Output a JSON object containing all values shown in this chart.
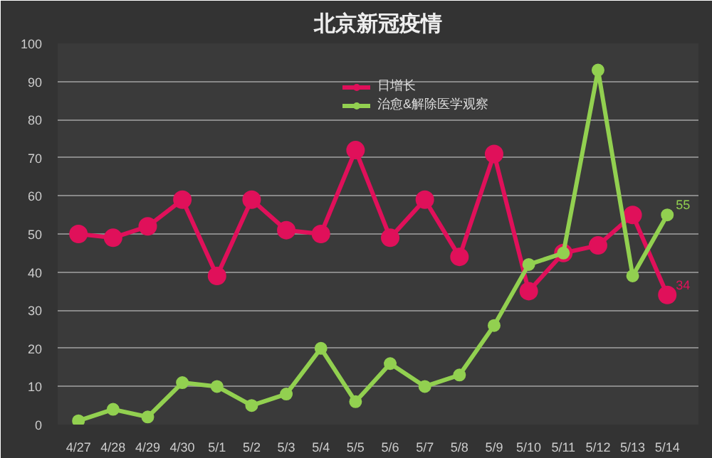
{
  "chart_data": {
    "type": "line",
    "title": "北京新冠疫情",
    "categories": [
      "4/27",
      "4/28",
      "4/29",
      "4/30",
      "5/1",
      "5/2",
      "5/3",
      "5/4",
      "5/5",
      "5/6",
      "5/7",
      "5/8",
      "5/9",
      "5/10",
      "5/11",
      "5/12",
      "5/13",
      "5/14"
    ],
    "series": [
      {
        "name": "日增长",
        "color": "#e0105a",
        "values": [
          50,
          49,
          52,
          59,
          39,
          59,
          51,
          50,
          72,
          49,
          59,
          44,
          71,
          35,
          45,
          47,
          55,
          34
        ],
        "value_labels": [
          null,
          null,
          null,
          null,
          null,
          null,
          null,
          null,
          null,
          null,
          null,
          null,
          null,
          null,
          null,
          null,
          null,
          "34"
        ]
      },
      {
        "name": "治愈&解除医学观察",
        "color": "#92d050",
        "values": [
          1,
          4,
          2,
          11,
          10,
          5,
          8,
          20,
          6,
          16,
          10,
          13,
          26,
          42,
          45,
          93,
          39,
          55
        ],
        "value_labels": [
          null,
          null,
          null,
          null,
          null,
          null,
          null,
          null,
          null,
          null,
          null,
          null,
          null,
          null,
          null,
          null,
          null,
          "55"
        ]
      }
    ],
    "ylim": [
      0,
      100
    ],
    "yticks": [
      0,
      10,
      20,
      30,
      40,
      50,
      60,
      70,
      80,
      90,
      100
    ],
    "grid": "y",
    "legend": "top right",
    "marker": "circle"
  }
}
